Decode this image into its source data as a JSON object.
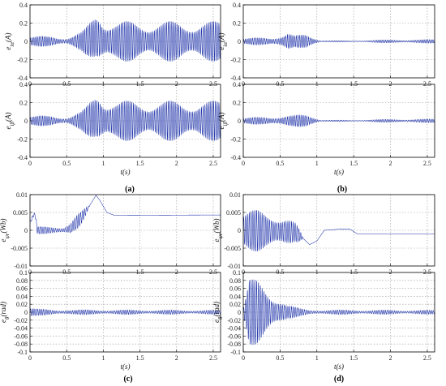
{
  "figure": {
    "panel_labels": [
      "(a)",
      "(b)",
      "(c)",
      "(d)"
    ]
  },
  "colors": {
    "signal": "#1a2fa8",
    "grid": "#9a9a9a",
    "axis": "#000000",
    "background": "#ffffff"
  },
  "chart_data": [
    {
      "panel": "(a)",
      "position": "top",
      "type": "line",
      "ylabel": "e_{iα}(A)",
      "xlabel": "",
      "xlim": [
        0,
        2.6
      ],
      "ylim": [
        -0.4,
        0.4
      ],
      "xticks": [
        0,
        0.5,
        1,
        1.5,
        2,
        2.5
      ],
      "xticklabels": [
        "0",
        "0.5",
        "1",
        "1.5",
        "2",
        "2.5"
      ],
      "yticks": [
        -0.4,
        -0.2,
        0,
        0.2,
        0.4
      ],
      "yticklabels": [
        "-0.4",
        "-0.2",
        "0",
        "0.2",
        "0.4"
      ],
      "grid": true,
      "series": [
        {
          "kind": "oscillation",
          "freq": 42,
          "envelope": [
            [
              0,
              0.05
            ],
            [
              0.3,
              0.06
            ],
            [
              0.5,
              0.04
            ],
            [
              0.6,
              0.07
            ],
            [
              0.7,
              0.1
            ],
            [
              0.8,
              0.18
            ],
            [
              0.9,
              0.3
            ],
            [
              0.95,
              0.34
            ],
            [
              1.05,
              0.26
            ],
            [
              1.2,
              0.22
            ],
            [
              2.6,
              0.22
            ]
          ],
          "offset": [
            [
              0,
              0
            ],
            [
              0.75,
              0
            ],
            [
              0.9,
              0.04
            ],
            [
              1.0,
              0
            ],
            [
              2.6,
              0
            ]
          ]
        }
      ]
    },
    {
      "panel": "(a)",
      "position": "bottom",
      "type": "line",
      "ylabel": "e_{iβ}(A)",
      "xlabel": "t(s)",
      "xlim": [
        0,
        2.6
      ],
      "ylim": [
        -0.4,
        0.4
      ],
      "xticks": [
        0,
        0.5,
        1,
        1.5,
        2,
        2.5
      ],
      "xticklabels": [
        "0",
        "0.5",
        "1",
        "1.5",
        "2",
        "2.5"
      ],
      "yticks": [
        -0.4,
        -0.2,
        0,
        0.2,
        0.4
      ],
      "yticklabels": [
        "-0.4",
        "-0.2",
        "0",
        "0.2",
        "0.4"
      ],
      "grid": true,
      "series": [
        {
          "kind": "oscillation",
          "freq": 42,
          "envelope": [
            [
              0,
              0.05
            ],
            [
              0.3,
              0.06
            ],
            [
              0.5,
              0.04
            ],
            [
              0.6,
              0.07
            ],
            [
              0.7,
              0.1
            ],
            [
              0.8,
              0.18
            ],
            [
              0.9,
              0.3
            ],
            [
              0.95,
              0.34
            ],
            [
              1.05,
              0.26
            ],
            [
              1.2,
              0.22
            ],
            [
              2.6,
              0.22
            ]
          ],
          "offset": [
            [
              0,
              0
            ],
            [
              0.75,
              0
            ],
            [
              0.9,
              0.03
            ],
            [
              1.0,
              0
            ],
            [
              2.6,
              0
            ]
          ]
        }
      ]
    },
    {
      "panel": "(b)",
      "position": "top",
      "type": "line",
      "ylabel": "e_{iα}(A)",
      "xlabel": "",
      "xlim": [
        0,
        2.6
      ],
      "ylim": [
        -0.4,
        0.4
      ],
      "xticks": [
        0,
        0.5,
        1,
        1.5,
        2,
        2.5
      ],
      "xticklabels": [
        "0",
        "0.5",
        "1",
        "1.5",
        "2",
        "2.5"
      ],
      "yticks": [
        -0.4,
        -0.2,
        0,
        0.2,
        0.4
      ],
      "yticklabels": [
        "-0.4",
        "-0.2",
        "0",
        "0.2",
        "0.4"
      ],
      "grid": true,
      "series": [
        {
          "kind": "oscillation",
          "freq": 42,
          "envelope": [
            [
              0,
              0.03
            ],
            [
              0.2,
              0.04
            ],
            [
              0.4,
              0.05
            ],
            [
              0.55,
              0.08
            ],
            [
              0.6,
              0.1
            ],
            [
              0.7,
              0.06
            ],
            [
              0.85,
              0.08
            ],
            [
              0.95,
              0.05
            ],
            [
              1.05,
              0.01
            ],
            [
              1.5,
              0.005
            ],
            [
              1.8,
              0.015
            ],
            [
              2.6,
              0.02
            ]
          ],
          "offset": [
            [
              0,
              0
            ],
            [
              2.6,
              0
            ]
          ]
        }
      ]
    },
    {
      "panel": "(b)",
      "position": "bottom",
      "type": "line",
      "ylabel": "e_{iβ}(A)",
      "xlabel": "t(s)",
      "xlim": [
        0,
        2.6
      ],
      "ylim": [
        -0.4,
        0.4
      ],
      "xticks": [
        0,
        0.5,
        1,
        1.5,
        2,
        2.5
      ],
      "xticklabels": [
        "0",
        "0.5",
        "1",
        "1.5",
        "2",
        "2.5"
      ],
      "yticks": [
        -0.4,
        -0.2,
        0,
        0.2,
        0.4
      ],
      "yticklabels": [
        "-0.4",
        "-0.2",
        "0",
        "0.2",
        "0.4"
      ],
      "grid": true,
      "series": [
        {
          "kind": "oscillation",
          "freq": 42,
          "envelope": [
            [
              0,
              0.03
            ],
            [
              0.2,
              0.04
            ],
            [
              0.4,
              0.05
            ],
            [
              0.55,
              0.06
            ],
            [
              0.7,
              0.06
            ],
            [
              0.85,
              0.07
            ],
            [
              0.95,
              0.05
            ],
            [
              1.05,
              0.01
            ],
            [
              1.5,
              0.005
            ],
            [
              1.8,
              0.015
            ],
            [
              2.6,
              0.02
            ]
          ],
          "offset": [
            [
              0,
              0
            ],
            [
              2.6,
              0
            ]
          ]
        }
      ]
    },
    {
      "panel": "(c)",
      "position": "top",
      "type": "line",
      "ylabel": "e_{ψr}(Wb)",
      "xlabel": "",
      "xlim": [
        0,
        2.6
      ],
      "ylim": [
        -0.01,
        0.01
      ],
      "xticks": [
        0,
        0.5,
        1,
        1.5,
        2,
        2.5
      ],
      "xticklabels": [
        "0",
        "0.5",
        "1",
        "1.5",
        "2",
        "2.5"
      ],
      "yticks": [
        -0.01,
        -0.005,
        0,
        0.005,
        0.01
      ],
      "yticklabels": [
        "-0.01",
        "-0.005",
        "0",
        "0.005",
        "0.01"
      ],
      "grid": true,
      "series": [
        {
          "kind": "oscillation",
          "freq": 38,
          "envelope": [
            [
              0,
              0.0005
            ],
            [
              0.05,
              0.0005
            ],
            [
              0.1,
              0.001
            ],
            [
              0.45,
              0.001
            ],
            [
              0.55,
              0.002
            ],
            [
              0.65,
              0.0022
            ],
            [
              0.75,
              0.0012
            ],
            [
              0.82,
              0
            ],
            [
              2.6,
              0
            ]
          ],
          "offset": [
            [
              0,
              0.002
            ],
            [
              0.04,
              0.004
            ],
            [
              0.07,
              0.0045
            ],
            [
              0.1,
              0
            ],
            [
              0.45,
              0
            ],
            [
              0.55,
              0.0005
            ],
            [
              0.7,
              0.0035
            ],
            [
              0.8,
              0.0065
            ],
            [
              0.9,
              0.0098
            ],
            [
              0.95,
              0.0085
            ],
            [
              1.05,
              0.005
            ],
            [
              1.15,
              0.0042
            ],
            [
              2.6,
              0.0043
            ]
          ]
        }
      ]
    },
    {
      "panel": "(c)",
      "position": "bottom",
      "type": "line",
      "ylabel": "e_{θ}(rad)",
      "xlabel": "t(s)",
      "xlim": [
        0,
        2.6
      ],
      "ylim": [
        -0.1,
        0.1
      ],
      "xticks": [
        0,
        0.5,
        1,
        1.5,
        2,
        2.5
      ],
      "xticklabels": [
        "0",
        "0.5",
        "1",
        "1.5",
        "2",
        "2.5"
      ],
      "yticks": [
        -0.1,
        -0.08,
        -0.06,
        -0.04,
        -0.02,
        0,
        0.02,
        0.04,
        0.06,
        0.08,
        0.1
      ],
      "yticklabels": [
        "-0.1",
        "-0.08",
        "-0.06",
        "-0.04",
        "-0.02",
        "0",
        "0.02",
        "0.04",
        "0.06",
        "0.08",
        "0.1"
      ],
      "grid": true,
      "series": [
        {
          "kind": "oscillation",
          "freq": 40,
          "envelope": [
            [
              0,
              0.012
            ],
            [
              0.1,
              0.008
            ],
            [
              0.4,
              0.006
            ],
            [
              0.5,
              0.007
            ],
            [
              0.6,
              0.006
            ],
            [
              0.9,
              0.006
            ],
            [
              2.6,
              0.005
            ]
          ],
          "offset": [
            [
              0,
              0
            ],
            [
              2.6,
              0
            ]
          ]
        }
      ]
    },
    {
      "panel": "(d)",
      "position": "top",
      "type": "line",
      "ylabel": "e_{ψr}(Wb)",
      "xlabel": "",
      "xlim": [
        0,
        2.6
      ],
      "ylim": [
        -0.01,
        0.01
      ],
      "xticks": [
        0,
        0.5,
        1,
        1.5,
        2,
        2.5
      ],
      "xticklabels": [
        "0",
        "0.5",
        "1",
        "1.5",
        "2",
        "2.5"
      ],
      "yticks": [
        -0.01,
        -0.005,
        0,
        0.005,
        0.01
      ],
      "yticklabels": [
        "-0.01",
        "-0.005",
        "0",
        "0.005",
        "0.01"
      ],
      "grid": true,
      "series": [
        {
          "kind": "oscillation",
          "freq": 40,
          "envelope": [
            [
              0,
              0.005
            ],
            [
              0.2,
              0.006
            ],
            [
              0.4,
              0.006
            ],
            [
              0.6,
              0.004
            ],
            [
              0.75,
              0.002
            ],
            [
              0.82,
              0
            ],
            [
              2.6,
              0
            ]
          ],
          "offset": [
            [
              0,
              0
            ],
            [
              0.7,
              -0.0005
            ],
            [
              0.8,
              -0.002
            ],
            [
              0.9,
              -0.004
            ],
            [
              1.0,
              -0.003
            ],
            [
              1.1,
              0
            ],
            [
              1.3,
              0.0003
            ],
            [
              1.45,
              0.0003
            ],
            [
              1.55,
              -0.001
            ],
            [
              2.6,
              -0.001
            ]
          ]
        }
      ]
    },
    {
      "panel": "(d)",
      "position": "bottom",
      "type": "line",
      "ylabel": "e_{θ}(rad)",
      "xlabel": "t(s)",
      "xlim": [
        0,
        2.6
      ],
      "ylim": [
        -0.1,
        0.1
      ],
      "xticks": [
        0,
        0.5,
        1,
        1.5,
        2,
        2.5
      ],
      "xticklabels": [
        "0",
        "0.5",
        "1",
        "1.5",
        "2",
        "2.5"
      ],
      "yticks": [
        -0.1,
        -0.08,
        -0.06,
        -0.04,
        -0.02,
        0,
        0.02,
        0.04,
        0.06,
        0.08,
        0.1
      ],
      "yticklabels": [
        "-0.1",
        "-0.08",
        "-0.06",
        "-0.04",
        "-0.02",
        "0",
        "0.02",
        "0.04",
        "0.06",
        "0.08",
        "0.1"
      ],
      "grid": true,
      "series": [
        {
          "kind": "oscillation",
          "freq": 40,
          "envelope": [
            [
              0,
              0.01
            ],
            [
              0.08,
              0.085
            ],
            [
              0.2,
              0.08
            ],
            [
              0.35,
              0.06
            ],
            [
              0.5,
              0.04
            ],
            [
              0.6,
              0.02
            ],
            [
              0.75,
              0.01
            ],
            [
              0.9,
              0.006
            ],
            [
              2.6,
              0.005
            ]
          ],
          "offset": [
            [
              0,
              0
            ],
            [
              2.6,
              0
            ]
          ]
        }
      ]
    }
  ]
}
